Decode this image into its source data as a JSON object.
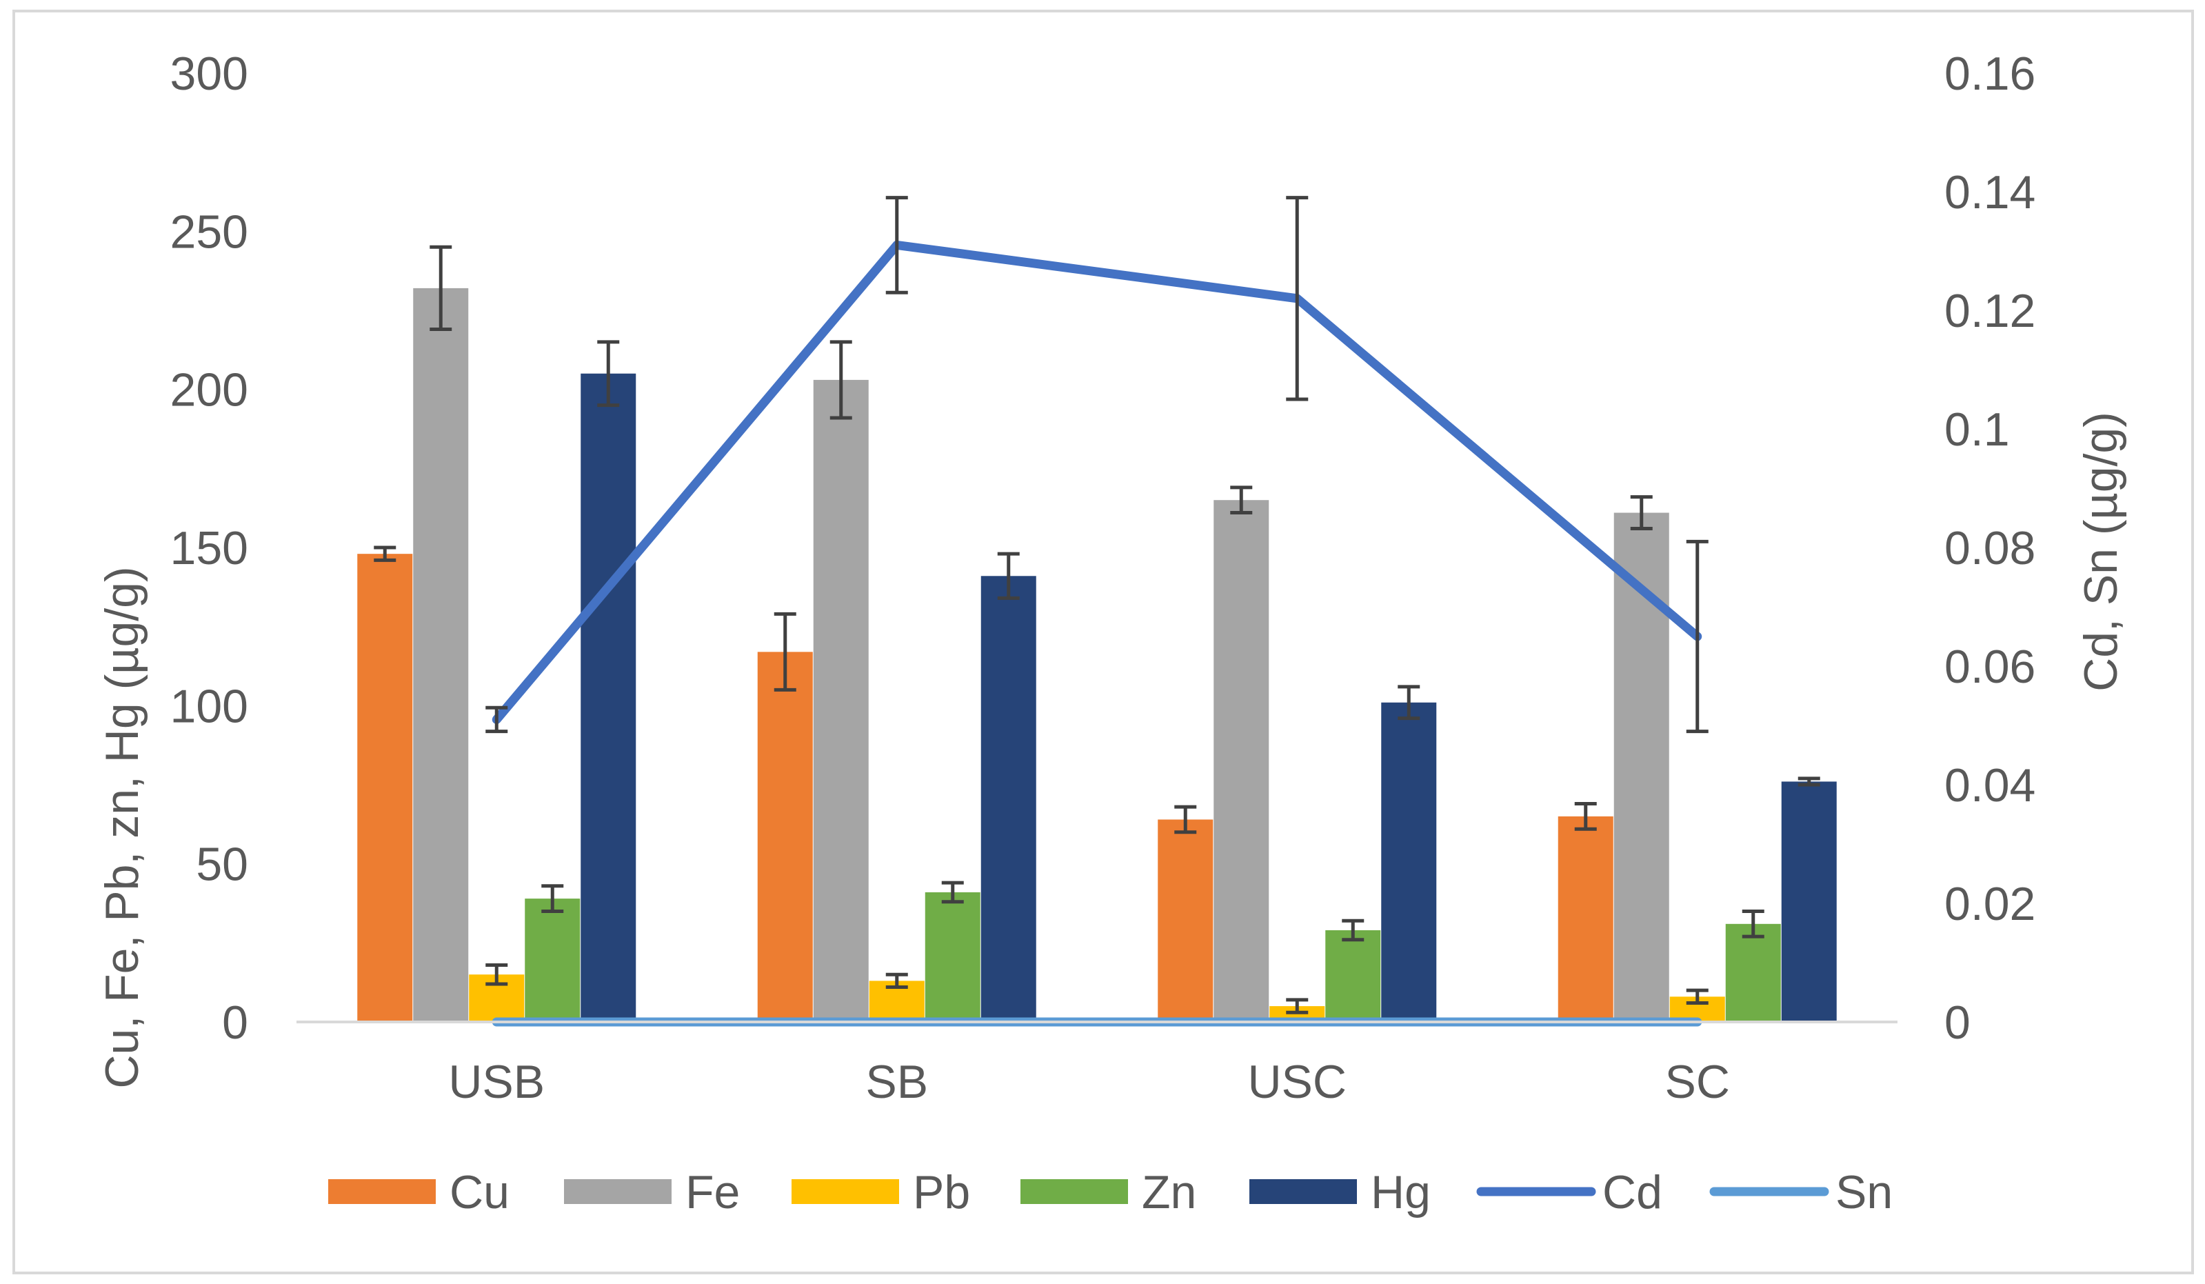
{
  "chart_data": {
    "type": "bar",
    "categories": [
      "USB",
      "SB",
      "USC",
      "SC"
    ],
    "bar_series": [
      {
        "name": "Cu",
        "color": "#ED7D31",
        "values": [
          148,
          117,
          64,
          65
        ],
        "errors": [
          2,
          12,
          4,
          4
        ]
      },
      {
        "name": "Fe",
        "color": "#A5A5A5",
        "values": [
          232,
          203,
          165,
          161
        ],
        "errors": [
          13,
          12,
          4,
          5
        ]
      },
      {
        "name": "Pb",
        "color": "#FFC000",
        "values": [
          15,
          13,
          5,
          8
        ],
        "errors": [
          3,
          2,
          2,
          2
        ]
      },
      {
        "name": "Zn",
        "color": "#70AD47",
        "values": [
          39,
          41,
          29,
          31
        ],
        "errors": [
          4,
          3,
          3,
          4
        ]
      },
      {
        "name": "Hg",
        "color": "#264478",
        "values": [
          205,
          141,
          101,
          76
        ],
        "errors": [
          10,
          7,
          5,
          1
        ]
      }
    ],
    "line_series": [
      {
        "name": "Cd",
        "color": "#4472C4",
        "axis": "right",
        "values": [
          0.051,
          0.131,
          0.122,
          0.065
        ],
        "errors": [
          0.002,
          0.008,
          0.017,
          0.016
        ]
      },
      {
        "name": "Sn",
        "color": "#5B9BD5",
        "axis": "right",
        "values": [
          0,
          0,
          0,
          0
        ]
      }
    ],
    "left_axis": {
      "label": "Cu, Fe, Pb, zn, Hg (µg/g)",
      "min": 0,
      "max": 300,
      "ticks": [
        "0",
        "50",
        "100",
        "150",
        "200",
        "250",
        "300"
      ]
    },
    "right_axis": {
      "label": "Cd, Sn (µg/g)",
      "min": 0,
      "max": 0.16,
      "ticks": [
        "0",
        "0.02",
        "0.04",
        "0.06",
        "0.08",
        "0.1",
        "0.12",
        "0.14",
        "0.16"
      ]
    },
    "legend": {
      "position": "bottom",
      "items": [
        "Cu",
        "Fe",
        "Pb",
        "Zn",
        "Hg",
        "Cd",
        "Sn"
      ]
    },
    "gridlines": false
  }
}
